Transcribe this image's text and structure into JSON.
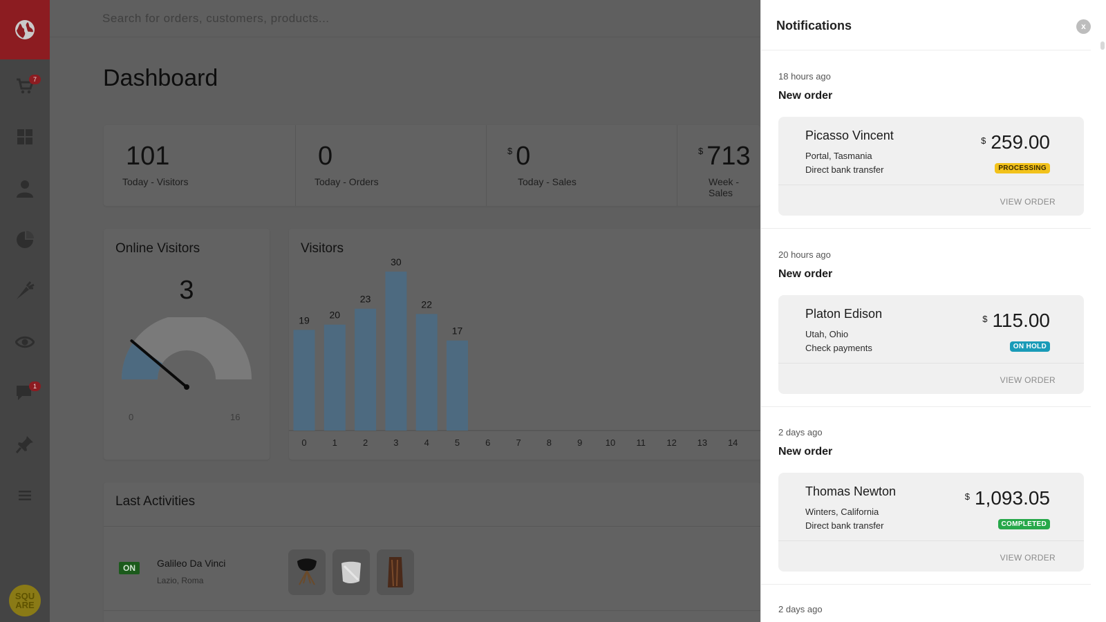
{
  "sidebar": {
    "logo_icon": "globe-icon",
    "items": [
      {
        "icon": "cart-icon",
        "badge": "7"
      },
      {
        "icon": "grid-icon",
        "badge": ""
      },
      {
        "icon": "user-icon",
        "badge": ""
      },
      {
        "icon": "pie-chart-icon",
        "badge": ""
      },
      {
        "icon": "carrot-icon",
        "badge": ""
      },
      {
        "icon": "eye-icon",
        "badge": ""
      },
      {
        "icon": "chat-icon",
        "badge": "1"
      },
      {
        "icon": "pin-icon",
        "badge": ""
      },
      {
        "icon": "menu-icon",
        "badge": ""
      }
    ],
    "avatar_text": "SQU ARE"
  },
  "topbar": {
    "search_placeholder": "Search for orders, customers, products..."
  },
  "page_title": "Dashboard",
  "stats": [
    {
      "value": "101",
      "currency": "",
      "label": "Today - Visitors"
    },
    {
      "value": "0",
      "currency": "",
      "label": "Today - Orders"
    },
    {
      "value": "0",
      "currency": "$",
      "label": "Today - Sales"
    },
    {
      "value": "713",
      "currency": "$",
      "label": "Week - Sales"
    }
  ],
  "online_visitors": {
    "title": "Online Visitors",
    "value": "3",
    "min": "0",
    "max": "16",
    "current": 3
  },
  "chart_data": {
    "type": "bar",
    "title": "Visitors",
    "categories": [
      "0",
      "1",
      "2",
      "3",
      "4",
      "5",
      "6",
      "7",
      "8",
      "9",
      "10",
      "11",
      "12",
      "13",
      "14"
    ],
    "values": [
      19,
      20,
      23,
      30,
      22,
      17,
      null,
      null,
      null,
      null,
      null,
      null,
      null,
      null,
      null
    ],
    "color": "#4d6a80"
  },
  "activities": {
    "title": "Last Activities",
    "rows": [
      {
        "status": "ON",
        "name": "Galileo Da Vinci",
        "location": "Lazio, Roma"
      }
    ]
  },
  "notifications": {
    "title": "Notifications",
    "close_label": "x",
    "items": [
      {
        "time": "18 hours ago",
        "title": "New order",
        "name": "Picasso Vincent",
        "location": "Portal, Tasmania",
        "payment": "Direct bank transfer",
        "currency": "$",
        "amount": "259.00",
        "status": "PROCESSING",
        "status_bg": "#f2c21b",
        "status_fg": "#3a2a00",
        "view": "VIEW ORDER"
      },
      {
        "time": "20 hours ago",
        "title": "New order",
        "name": "Platon Edison",
        "location": "Utah, Ohio",
        "payment": "Check payments",
        "currency": "$",
        "amount": "115.00",
        "status": "ON HOLD",
        "status_bg": "#1a9bb8",
        "status_fg": "#ffffff",
        "view": "VIEW ORDER"
      },
      {
        "time": "2 days ago",
        "title": "New order",
        "name": "Thomas Newton",
        "location": "Winters, California",
        "payment": "Direct bank transfer",
        "currency": "$",
        "amount": "1,093.05",
        "status": "COMPLETED",
        "status_bg": "#27a84a",
        "status_fg": "#ffffff",
        "view": "VIEW ORDER"
      },
      {
        "time": "2 days ago"
      }
    ]
  }
}
